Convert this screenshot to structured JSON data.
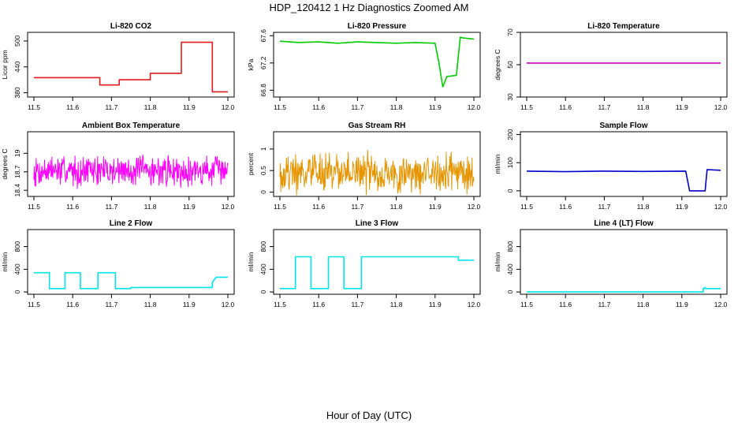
{
  "title": "HDP_120412  1 Hz Diagnostics Zoomed AM",
  "x_caption": "Hour of Day (UTC)",
  "chart_data": [
    {
      "type": "line",
      "title": "Li-820 CO2",
      "ylabel": "Licor ppm",
      "color": "#e41a1c",
      "xlim": [
        11.5,
        12.0
      ],
      "ylim": [
        370,
        520
      ],
      "xticks": [
        "11.5",
        "11.6",
        "11.7",
        "11.8",
        "11.9",
        "12.0"
      ],
      "yticks": [
        380,
        440,
        500
      ],
      "series": [
        {
          "x": [
            11.5,
            11.67,
            11.67,
            11.72,
            11.72,
            11.8,
            11.8,
            11.88,
            11.88,
            11.96,
            11.96,
            11.98,
            12.0
          ],
          "y": [
            415,
            415,
            398,
            398,
            410,
            410,
            425,
            425,
            497,
            497,
            382,
            382,
            382
          ]
        }
      ]
    },
    {
      "type": "line",
      "title": "Li-820 Pressure",
      "ylabel": "kPa",
      "color": "#00cc00",
      "xlim": [
        11.5,
        12.0
      ],
      "ylim": [
        66.7,
        67.65
      ],
      "xticks": [
        "11.5",
        "11.6",
        "11.7",
        "11.8",
        "11.9",
        "12.0"
      ],
      "yticks": [
        66.8,
        67.2,
        67.6
      ],
      "series": [
        {
          "x": [
            11.5,
            11.55,
            11.6,
            11.65,
            11.7,
            11.75,
            11.8,
            11.85,
            11.9,
            11.91,
            11.92,
            11.925,
            11.93,
            11.955,
            11.96,
            11.965,
            11.97,
            12.0
          ],
          "y": [
            67.52,
            67.5,
            67.51,
            67.49,
            67.51,
            67.5,
            67.49,
            67.5,
            67.49,
            67.2,
            66.85,
            66.92,
            67.0,
            67.02,
            67.3,
            67.58,
            67.57,
            67.55
          ]
        }
      ]
    },
    {
      "type": "line",
      "title": "Li-820 Temperature",
      "ylabel": "degrees C",
      "color": "#cc00cc",
      "xlim": [
        11.5,
        12.0
      ],
      "ylim": [
        30,
        70
      ],
      "xticks": [
        "11.5",
        "11.6",
        "11.7",
        "11.8",
        "11.9",
        "12.0"
      ],
      "yticks": [
        30,
        50,
        70
      ],
      "series": [
        {
          "x": [
            11.5,
            12.0
          ],
          "y": [
            51,
            51
          ]
        }
      ]
    },
    {
      "type": "line",
      "title": "Ambient Box Temperature",
      "ylabel": "degrees C",
      "color": "#ff00ff",
      "xlim": [
        11.5,
        12.0
      ],
      "ylim": [
        18.3,
        19.35
      ],
      "xticks": [
        "11.5",
        "11.6",
        "11.7",
        "11.8",
        "11.9",
        "12.0"
      ],
      "yticks": [
        18.4,
        18.7,
        19.0
      ],
      "noise": {
        "base": 18.72,
        "amp": 0.3,
        "n": 420,
        "seed": 7
      }
    },
    {
      "type": "line",
      "title": "Gas Stream RH",
      "ylabel": "percent",
      "color": "#e69500",
      "xlim": [
        11.5,
        12.0
      ],
      "ylim": [
        -0.1,
        1.4
      ],
      "xticks": [
        "11.5",
        "11.6",
        "11.7",
        "11.8",
        "11.9",
        "12.0"
      ],
      "yticks": [
        0.0,
        0.5,
        1.0
      ],
      "noise": {
        "base": 0.45,
        "amp": 0.55,
        "n": 420,
        "seed": 19
      }
    },
    {
      "type": "line",
      "title": "Sample Flow",
      "ylabel": "ml/min",
      "color": "#0000cc",
      "xlim": [
        11.5,
        12.0
      ],
      "ylim": [
        -20,
        210
      ],
      "xticks": [
        "11.5",
        "11.6",
        "11.7",
        "11.8",
        "11.9",
        "12.0"
      ],
      "yticks": [
        0,
        100,
        200
      ],
      "series": [
        {
          "x": [
            11.5,
            11.6,
            11.7,
            11.8,
            11.91,
            11.92,
            11.96,
            11.965,
            12.0
          ],
          "y": [
            70,
            68,
            70,
            69,
            70,
            0,
            0,
            75,
            73
          ]
        }
      ]
    },
    {
      "type": "line",
      "title": "Line 2 Flow",
      "ylabel": "ml/min",
      "color": "#00e5ee",
      "xlim": [
        11.5,
        12.0
      ],
      "ylim": [
        -40,
        1100
      ],
      "xticks": [
        "11.5",
        "11.6",
        "11.7",
        "11.8",
        "11.9",
        "12.0"
      ],
      "yticks": [
        0,
        400,
        800
      ],
      "series": [
        {
          "x": [
            11.5,
            11.54,
            11.54,
            11.58,
            11.58,
            11.62,
            11.62,
            11.665,
            11.665,
            11.71,
            11.71,
            11.75,
            11.75,
            11.96,
            11.96,
            11.97,
            12.0
          ],
          "y": [
            340,
            340,
            60,
            60,
            340,
            340,
            60,
            60,
            340,
            340,
            60,
            60,
            80,
            80,
            170,
            260,
            260
          ]
        }
      ]
    },
    {
      "type": "line",
      "title": "Line 3 Flow",
      "ylabel": "ml/min",
      "color": "#00e5ee",
      "xlim": [
        11.5,
        12.0
      ],
      "ylim": [
        -40,
        1100
      ],
      "xticks": [
        "11.5",
        "11.6",
        "11.7",
        "11.8",
        "11.9",
        "12.0"
      ],
      "yticks": [
        0,
        400,
        800
      ],
      "series": [
        {
          "x": [
            11.5,
            11.54,
            11.54,
            11.58,
            11.58,
            11.625,
            11.625,
            11.665,
            11.665,
            11.71,
            11.71,
            11.96,
            11.96,
            12.0
          ],
          "y": [
            60,
            60,
            620,
            620,
            60,
            60,
            620,
            620,
            60,
            60,
            620,
            620,
            560,
            560
          ]
        }
      ]
    },
    {
      "type": "line",
      "title": "Line 4 (LT) Flow",
      "ylabel": "ml/min",
      "color": "#00e5ee",
      "xlim": [
        11.5,
        12.0
      ],
      "ylim": [
        -40,
        1100
      ],
      "xticks": [
        "11.5",
        "11.6",
        "11.7",
        "11.8",
        "11.9",
        "12.0"
      ],
      "yticks": [
        0,
        400,
        800
      ],
      "series": [
        {
          "x": [
            11.5,
            11.955,
            11.955,
            11.96,
            11.96,
            12.0
          ],
          "y": [
            0,
            0,
            60,
            80,
            60,
            60
          ]
        }
      ]
    }
  ]
}
